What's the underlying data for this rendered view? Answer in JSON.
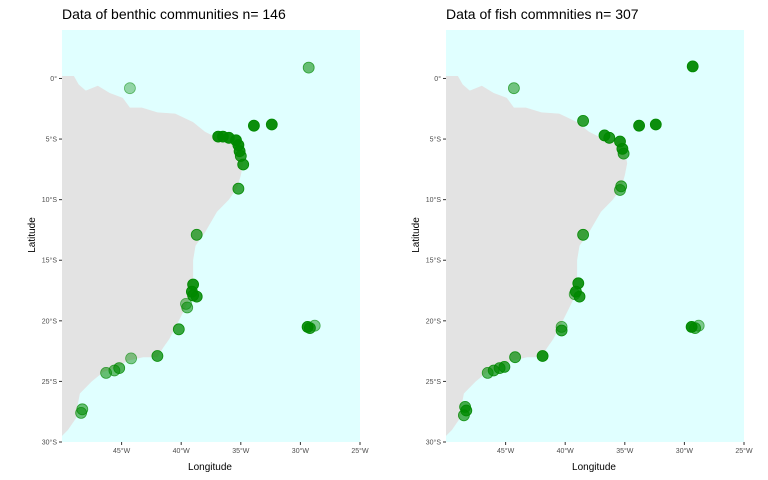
{
  "colors": {
    "ocean": "#e0ffff",
    "land": "#e3e3e3",
    "point": "#008800",
    "tick_text": "#4d4d4d"
  },
  "axes": {
    "x_range_deg": [
      -50,
      -25
    ],
    "y_range_deg": [
      -30,
      4
    ],
    "x_ticks": [
      {
        "value": -45,
        "label": "45°W"
      },
      {
        "value": -40,
        "label": "40°W"
      },
      {
        "value": -35,
        "label": "35°W"
      },
      {
        "value": -30,
        "label": "30°W"
      },
      {
        "value": -25,
        "label": "25°W"
      }
    ],
    "y_ticks": [
      {
        "value": 0,
        "label": "0°"
      },
      {
        "value": -5,
        "label": "5°S"
      },
      {
        "value": -10,
        "label": "10°S"
      },
      {
        "value": -15,
        "label": "15°S"
      },
      {
        "value": -20,
        "label": "20°S"
      },
      {
        "value": -25,
        "label": "25°S"
      },
      {
        "value": -30,
        "label": "30°S"
      }
    ],
    "xlabel": "Longitude",
    "ylabel": "Latitude"
  },
  "coastline": [
    [
      -50,
      0.2
    ],
    [
      -49,
      0.2
    ],
    [
      -48.6,
      -0.5
    ],
    [
      -48,
      -1.0
    ],
    [
      -47,
      -0.6
    ],
    [
      -46,
      -1.2
    ],
    [
      -44.9,
      -1.6
    ],
    [
      -44.3,
      -2.4
    ],
    [
      -43.3,
      -2.4
    ],
    [
      -42,
      -2.8
    ],
    [
      -40.5,
      -2.9
    ],
    [
      -39,
      -3.6
    ],
    [
      -38,
      -4.4
    ],
    [
      -37,
      -4.9
    ],
    [
      -36,
      -5.1
    ],
    [
      -35.3,
      -5.2
    ],
    [
      -35,
      -6
    ],
    [
      -34.8,
      -7
    ],
    [
      -35,
      -8
    ],
    [
      -35.3,
      -9
    ],
    [
      -36,
      -10
    ],
    [
      -37,
      -11
    ],
    [
      -38,
      -12.7
    ],
    [
      -38.8,
      -13.8
    ],
    [
      -39,
      -15
    ],
    [
      -39,
      -16.5
    ],
    [
      -39.2,
      -18
    ],
    [
      -39.7,
      -19
    ],
    [
      -40.2,
      -20
    ],
    [
      -41,
      -21.5
    ],
    [
      -41.5,
      -22.2
    ],
    [
      -42,
      -23
    ],
    [
      -43.2,
      -23
    ],
    [
      -44.5,
      -23.3
    ],
    [
      -45.5,
      -23.9
    ],
    [
      -46.5,
      -24.2
    ],
    [
      -47.5,
      -25
    ],
    [
      -48.5,
      -26
    ],
    [
      -48.7,
      -27
    ],
    [
      -48.8,
      -28
    ],
    [
      -49.5,
      -29
    ],
    [
      -50,
      -29.5
    ]
  ],
  "chart_data": [
    {
      "type": "scatter",
      "title": "Data of benthic communities n= 146",
      "xlabel": "Longitude",
      "ylabel": "Latitude",
      "xlim": [
        -50,
        -25
      ],
      "ylim": [
        -30,
        4
      ],
      "points": [
        {
          "lon": -44.3,
          "lat": -0.8,
          "a": 0.35
        },
        {
          "lon": -29.3,
          "lat": 0.9,
          "a": 0.55
        },
        {
          "lon": -36.9,
          "lat": -4.8,
          "a": 0.95
        },
        {
          "lon": -36.5,
          "lat": -4.8,
          "a": 0.95
        },
        {
          "lon": -36,
          "lat": -4.9,
          "a": 0.95
        },
        {
          "lon": -35.4,
          "lat": -5.1,
          "a": 0.95
        },
        {
          "lon": -35.2,
          "lat": -5.5,
          "a": 0.95
        },
        {
          "lon": -35.1,
          "lat": -6,
          "a": 0.9
        },
        {
          "lon": -35,
          "lat": -6.4,
          "a": 0.8
        },
        {
          "lon": -34.8,
          "lat": -7.1,
          "a": 0.85
        },
        {
          "lon": -33.9,
          "lat": -3.9,
          "a": 0.95
        },
        {
          "lon": -32.4,
          "lat": -3.8,
          "a": 0.95
        },
        {
          "lon": -35.2,
          "lat": -9.1,
          "a": 0.75
        },
        {
          "lon": -38.7,
          "lat": -12.9,
          "a": 0.7
        },
        {
          "lon": -39,
          "lat": -17,
          "a": 0.9
        },
        {
          "lon": -39.1,
          "lat": -17.6,
          "a": 0.9
        },
        {
          "lon": -39,
          "lat": -17.9,
          "a": 0.85
        },
        {
          "lon": -38.7,
          "lat": -18,
          "a": 0.85
        },
        {
          "lon": -39.5,
          "lat": -18.9,
          "a": 0.55
        },
        {
          "lon": -39.6,
          "lat": -18.6,
          "a": 0.45
        },
        {
          "lon": -40.2,
          "lat": -20.7,
          "a": 0.75
        },
        {
          "lon": -29.4,
          "lat": -20.5,
          "a": 0.9
        },
        {
          "lon": -29.2,
          "lat": -20.6,
          "a": 0.8
        },
        {
          "lon": -28.8,
          "lat": -20.4,
          "a": 0.45
        },
        {
          "lon": -42,
          "lat": -22.9,
          "a": 0.75
        },
        {
          "lon": -44.2,
          "lat": -23.1,
          "a": 0.45
        },
        {
          "lon": -45.2,
          "lat": -23.9,
          "a": 0.65
        },
        {
          "lon": -45.6,
          "lat": -24.1,
          "a": 0.55
        },
        {
          "lon": -46.3,
          "lat": -24.3,
          "a": 0.55
        },
        {
          "lon": -48.3,
          "lat": -27.3,
          "a": 0.55
        },
        {
          "lon": -48.4,
          "lat": -27.6,
          "a": 0.55
        }
      ]
    },
    {
      "type": "scatter",
      "title": "Data of fish commnities n= 307",
      "xlabel": "Longitude",
      "ylabel": "Latitude",
      "xlim": [
        -50,
        -25
      ],
      "ylim": [
        -30,
        4
      ],
      "points": [
        {
          "lon": -44.3,
          "lat": -0.8,
          "a": 0.5
        },
        {
          "lon": -29.3,
          "lat": 1,
          "a": 0.95
        },
        {
          "lon": -38.5,
          "lat": -3.5,
          "a": 0.8
        },
        {
          "lon": -36.7,
          "lat": -4.7,
          "a": 0.9
        },
        {
          "lon": -36.3,
          "lat": -4.9,
          "a": 0.85
        },
        {
          "lon": -35.4,
          "lat": -5.2,
          "a": 0.9
        },
        {
          "lon": -35.2,
          "lat": -5.8,
          "a": 0.9
        },
        {
          "lon": -35.1,
          "lat": -6.2,
          "a": 0.7
        },
        {
          "lon": -33.8,
          "lat": -3.9,
          "a": 0.95
        },
        {
          "lon": -32.4,
          "lat": -3.8,
          "a": 0.95
        },
        {
          "lon": -35.3,
          "lat": -8.9,
          "a": 0.65
        },
        {
          "lon": -35.4,
          "lat": -9.2,
          "a": 0.6
        },
        {
          "lon": -38.5,
          "lat": -12.9,
          "a": 0.75
        },
        {
          "lon": -38.9,
          "lat": -16.9,
          "a": 0.9
        },
        {
          "lon": -39.1,
          "lat": -17.6,
          "a": 0.85
        },
        {
          "lon": -38.8,
          "lat": -18,
          "a": 0.85
        },
        {
          "lon": -39.2,
          "lat": -17.8,
          "a": 0.45
        },
        {
          "lon": -40.3,
          "lat": -20.5,
          "a": 0.5
        },
        {
          "lon": -40.3,
          "lat": -20.8,
          "a": 0.75
        },
        {
          "lon": -29.4,
          "lat": -20.5,
          "a": 0.95
        },
        {
          "lon": -29.1,
          "lat": -20.6,
          "a": 0.65
        },
        {
          "lon": -28.8,
          "lat": -20.4,
          "a": 0.45
        },
        {
          "lon": -41.9,
          "lat": -22.9,
          "a": 0.9
        },
        {
          "lon": -44.2,
          "lat": -23,
          "a": 0.7
        },
        {
          "lon": -45.1,
          "lat": -23.8,
          "a": 0.75
        },
        {
          "lon": -45.5,
          "lat": -23.9,
          "a": 0.7
        },
        {
          "lon": -46,
          "lat": -24.1,
          "a": 0.7
        },
        {
          "lon": -46.5,
          "lat": -24.3,
          "a": 0.6
        },
        {
          "lon": -48.4,
          "lat": -27.1,
          "a": 0.7
        },
        {
          "lon": -48.3,
          "lat": -27.4,
          "a": 0.8
        },
        {
          "lon": -48.5,
          "lat": -27.8,
          "a": 0.65
        }
      ]
    }
  ]
}
